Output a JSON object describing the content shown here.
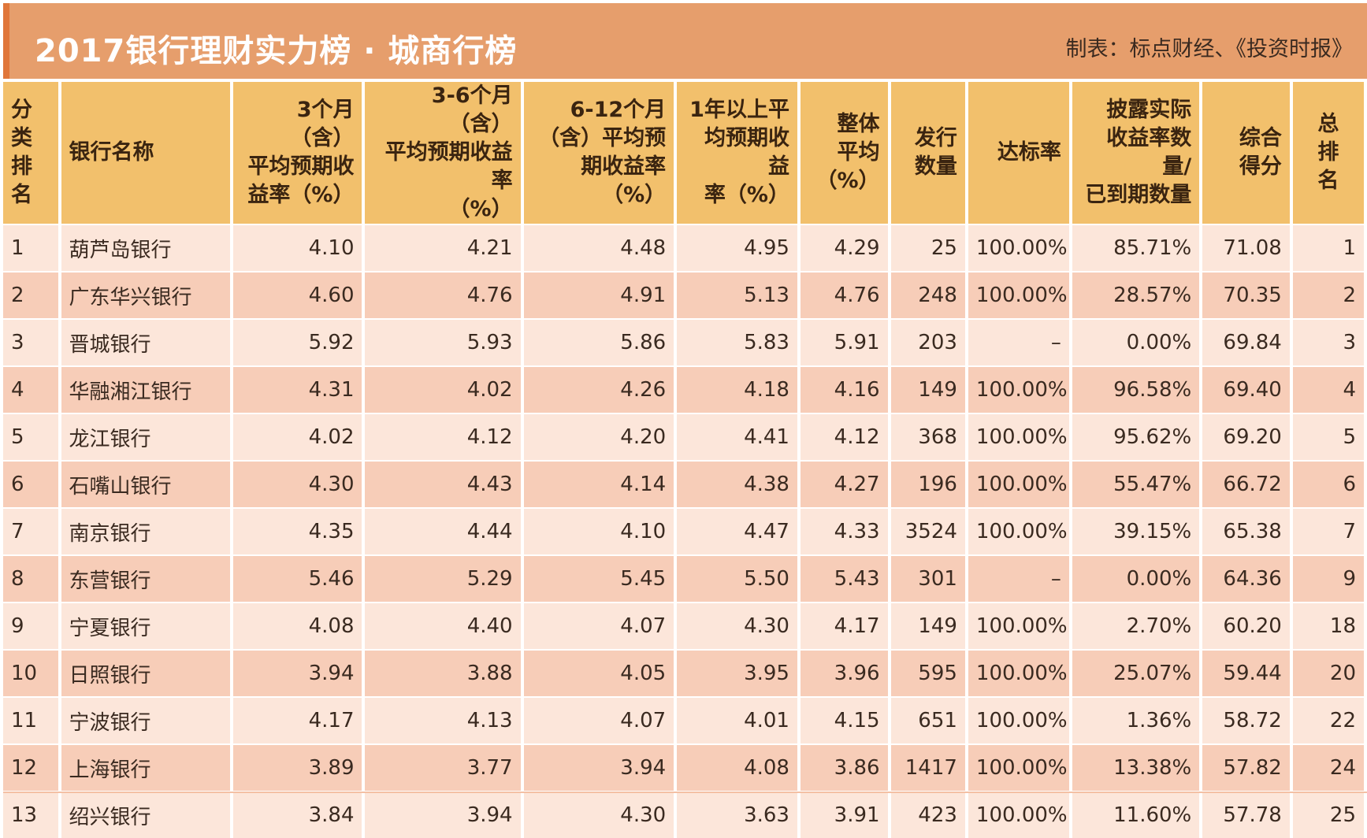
{
  "header": {
    "title": "2017银行理财实力榜 · 城商行榜",
    "source": "制表：标点财经、《投资时报》"
  },
  "columns": [
    {
      "label": "分类\n排名"
    },
    {
      "label": "银行名称"
    },
    {
      "label": "3个月（含）\n平均预期收\n益率（%）"
    },
    {
      "label": "3-6个月（含）\n平均预期收益率\n（%）"
    },
    {
      "label": "6-12个月\n（含）平均预\n期收益率（%）"
    },
    {
      "label": "1年以上平\n均预期收益\n率（%）"
    },
    {
      "label": "整体\n平均\n（%）"
    },
    {
      "label": "发行\n数量"
    },
    {
      "label": "达标率"
    },
    {
      "label": "披露实际\n收益率数量/\n已到期数量"
    },
    {
      "label": "综合\n得分"
    },
    {
      "label": "总\n排\n名"
    }
  ],
  "rows": [
    [
      "1",
      "葫芦岛银行",
      "4.10",
      "4.21",
      "4.48",
      "4.95",
      "4.29",
      "25",
      "100.00%",
      "85.71%",
      "71.08",
      "1"
    ],
    [
      "2",
      "广东华兴银行",
      "4.60",
      "4.76",
      "4.91",
      "5.13",
      "4.76",
      "248",
      "100.00%",
      "28.57%",
      "70.35",
      "2"
    ],
    [
      "3",
      "晋城银行",
      "5.92",
      "5.93",
      "5.86",
      "5.83",
      "5.91",
      "203",
      "–",
      "0.00%",
      "69.84",
      "3"
    ],
    [
      "4",
      "华融湘江银行",
      "4.31",
      "4.02",
      "4.26",
      "4.18",
      "4.16",
      "149",
      "100.00%",
      "96.58%",
      "69.40",
      "4"
    ],
    [
      "5",
      "龙江银行",
      "4.02",
      "4.12",
      "4.20",
      "4.41",
      "4.12",
      "368",
      "100.00%",
      "95.62%",
      "69.20",
      "5"
    ],
    [
      "6",
      "石嘴山银行",
      "4.30",
      "4.43",
      "4.14",
      "4.38",
      "4.27",
      "196",
      "100.00%",
      "55.47%",
      "66.72",
      "6"
    ],
    [
      "7",
      "南京银行",
      "4.35",
      "4.44",
      "4.10",
      "4.47",
      "4.33",
      "3524",
      "100.00%",
      "39.15%",
      "65.38",
      "7"
    ],
    [
      "8",
      "东营银行",
      "5.46",
      "5.29",
      "5.45",
      "5.50",
      "5.43",
      "301",
      "–",
      "0.00%",
      "64.36",
      "9"
    ],
    [
      "9",
      "宁夏银行",
      "4.08",
      "4.40",
      "4.07",
      "4.30",
      "4.17",
      "149",
      "100.00%",
      "2.70%",
      "60.20",
      "18"
    ],
    [
      "10",
      "日照银行",
      "3.94",
      "3.88",
      "4.05",
      "3.95",
      "3.96",
      "595",
      "100.00%",
      "25.07%",
      "59.44",
      "20"
    ],
    [
      "11",
      "宁波银行",
      "4.17",
      "4.13",
      "4.07",
      "4.01",
      "4.15",
      "651",
      "100.00%",
      "1.36%",
      "58.72",
      "22"
    ],
    [
      "12",
      "上海银行",
      "3.89",
      "3.77",
      "3.94",
      "4.08",
      "3.86",
      "1417",
      "100.00%",
      "13.38%",
      "57.82",
      "24"
    ],
    [
      "13",
      "绍兴银行",
      "3.84",
      "3.94",
      "4.30",
      "3.63",
      "3.91",
      "423",
      "100.00%",
      "11.60%",
      "57.78",
      "25"
    ]
  ]
}
